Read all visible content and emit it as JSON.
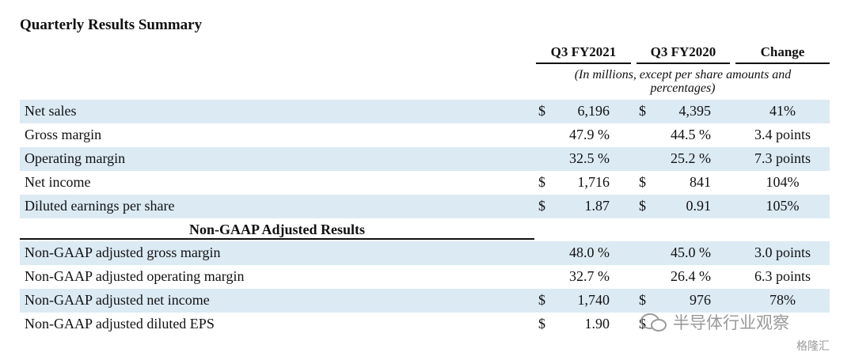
{
  "title": "Quarterly Results Summary",
  "columns": [
    "Q3 FY2021",
    "Q3 FY2020",
    "Change"
  ],
  "note": "(In millions, except per share amounts and percentages)",
  "gaap_rows": [
    {
      "label": "Net sales",
      "d1": "$",
      "v1": "6,196",
      "d2": "$",
      "v2": "4,395",
      "change": "41%"
    },
    {
      "label": "Gross margin",
      "d1": "",
      "v1": "47.9 %",
      "d2": "",
      "v2": "44.5 %",
      "change": "3.4 points"
    },
    {
      "label": "Operating margin",
      "d1": "",
      "v1": "32.5 %",
      "d2": "",
      "v2": "25.2 %",
      "change": "7.3 points"
    },
    {
      "label": "Net income",
      "d1": "$",
      "v1": "1,716",
      "d2": "$",
      "v2": "841",
      "change": "104%"
    },
    {
      "label": "Diluted earnings per share",
      "d1": "$",
      "v1": "1.87",
      "d2": "$",
      "v2": "0.91",
      "change": "105%"
    }
  ],
  "section_title": "Non-GAAP Adjusted Results",
  "nongaap_rows": [
    {
      "label": "Non-GAAP adjusted gross margin",
      "d1": "",
      "v1": "48.0 %",
      "d2": "",
      "v2": "45.0 %",
      "change": "3.0 points"
    },
    {
      "label": "Non-GAAP adjusted operating margin",
      "d1": "",
      "v1": "32.7 %",
      "d2": "",
      "v2": "26.4 %",
      "change": "6.3 points"
    },
    {
      "label": "Non-GAAP adjusted net income",
      "d1": "$",
      "v1": "1,740",
      "d2": "$",
      "v2": "976",
      "change": "78%"
    },
    {
      "label": "Non-GAAP adjusted diluted EPS",
      "d1": "$",
      "v1": "1.90",
      "d2": "$",
      "v2": "",
      "change": ""
    }
  ],
  "watermark": {
    "text": "半导体行业观察",
    "sub": "格隆汇"
  }
}
